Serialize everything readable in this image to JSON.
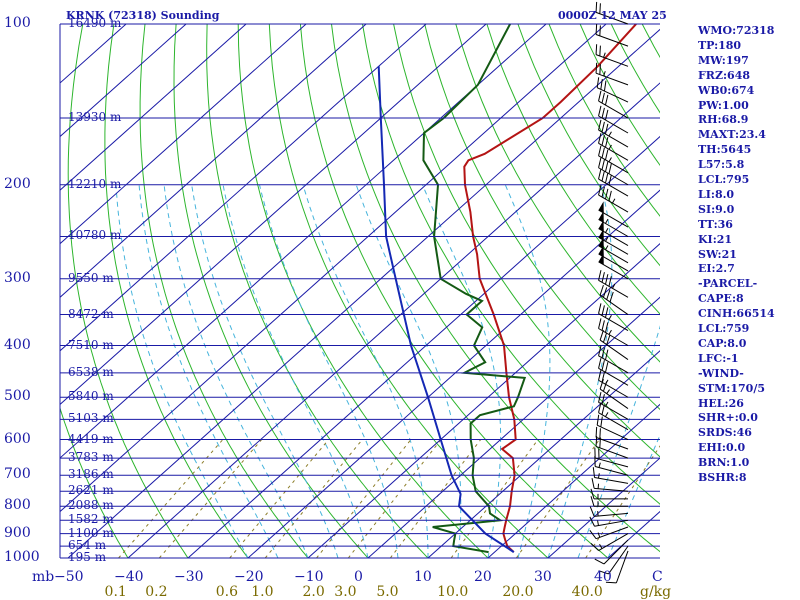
{
  "header": {
    "station": "KRNK (72318) Sounding",
    "time": "0000Z 12 MAY 25"
  },
  "indices": [
    "WMO:72318",
    "TP:180",
    "MW:197",
    "FRZ:648",
    "WB0:674",
    "PW:1.00",
    "RH:68.9",
    "MAXT:23.4",
    "TH:5645",
    "L57:5.8",
    "LCL:795",
    "LI:8.0",
    "SI:9.0",
    "TT:36",
    "KI:21",
    "SW:21",
    "EI:2.7",
    "-PARCEL-",
    "CAPE:8",
    "CINH:66514",
    "LCL:759",
    "CAP:8.0",
    "LFC:-1",
    "-WIND-",
    "STM:170/5",
    "HEL:26",
    "SHR+:0.0",
    "SRDS:46",
    "EHI:0.0",
    "BRN:1.0",
    "BSHR:8"
  ],
  "axis": {
    "pressure_unit": "mb",
    "mixing_unit": "g/kg",
    "c_label": "C"
  },
  "colors": {
    "isobar": "#1a1aa6",
    "isotherm": "#1a1aa6",
    "dry_adiabat": "#2db52d",
    "moist_adiabat": "#46b4dc",
    "mixing_ratio": "#8c7d28",
    "temperature": "#b41414",
    "dewpoint": "#145a14",
    "parcel": "#1428b4",
    "wind": "#000000"
  },
  "chart_data": {
    "type": "line",
    "title": "KRNK (72318) Sounding",
    "subtitle": "0000Z 12 MAY 25",
    "pressure_levels": [
      100,
      200,
      300,
      400,
      500,
      600,
      700,
      800,
      900,
      1000
    ],
    "pressure_range": [
      1000,
      100
    ],
    "temp_ticks": [
      -50,
      -40,
      -30,
      -20,
      -10,
      0,
      10,
      20,
      30,
      40
    ],
    "mixing_ratio_ticks": [
      "0.1",
      "0.2",
      "0.6",
      "1.0",
      "2.0",
      "3.0",
      "5.0",
      "10.0",
      "20.0",
      "40.0"
    ],
    "mixing_ratio_values": [
      0.1,
      0.2,
      0.6,
      1.0,
      2.0,
      3.0,
      5.0,
      10.0,
      20.0,
      40.0
    ],
    "heights": [
      {
        "p": 100,
        "text": "16490 m"
      },
      {
        "p": 150,
        "text": "13930 m"
      },
      {
        "p": 200,
        "text": "12210 m"
      },
      {
        "p": 250,
        "text": "10780 m"
      },
      {
        "p": 300,
        "text": "9550 m"
      },
      {
        "p": 350,
        "text": "8472 m"
      },
      {
        "p": 400,
        "text": "7510 m"
      },
      {
        "p": 450,
        "text": "6538 m"
      },
      {
        "p": 500,
        "text": "5840 m"
      },
      {
        "p": 550,
        "text": "5103 m"
      },
      {
        "p": 600,
        "text": "4419 m"
      },
      {
        "p": 650,
        "text": "3783 m"
      },
      {
        "p": 700,
        "text": "3186 m"
      },
      {
        "p": 750,
        "text": "2621 m"
      },
      {
        "p": 800,
        "text": "2088 m"
      },
      {
        "p": 850,
        "text": "1582 m"
      },
      {
        "p": 900,
        "text": "1100 m"
      },
      {
        "p": 950,
        "text": "654 m"
      },
      {
        "p": 1000,
        "text": "195 m"
      }
    ],
    "series": [
      {
        "name": "temperature",
        "points": [
          [
            975,
            23.2
          ],
          [
            950,
            21.0
          ],
          [
            925,
            19.5
          ],
          [
            900,
            18.0
          ],
          [
            875,
            17.0
          ],
          [
            850,
            16.0
          ],
          [
            800,
            14.0
          ],
          [
            750,
            11.5
          ],
          [
            700,
            9.0
          ],
          [
            650,
            5.5
          ],
          [
            625,
            2.0
          ],
          [
            600,
            2.5
          ],
          [
            550,
            -1.5
          ],
          [
            500,
            -6.5
          ],
          [
            450,
            -11.5
          ],
          [
            400,
            -17.0
          ],
          [
            350,
            -24.5
          ],
          [
            300,
            -33.5
          ],
          [
            270,
            -38.5
          ],
          [
            250,
            -42.5
          ],
          [
            225,
            -47.5
          ],
          [
            200,
            -53.5
          ],
          [
            185,
            -57.0
          ],
          [
            180,
            -57.5
          ],
          [
            175,
            -56.0
          ],
          [
            150,
            -53.0
          ],
          [
            140,
            -53.0
          ],
          [
            120,
            -53.5
          ],
          [
            100,
            -55.0
          ]
        ]
      },
      {
        "name": "dewpoint",
        "points": [
          [
            975,
            19.0
          ],
          [
            950,
            12.0
          ],
          [
            925,
            11.0
          ],
          [
            900,
            10.0
          ],
          [
            875,
            5.0
          ],
          [
            860,
            11.0
          ],
          [
            850,
            15.0
          ],
          [
            825,
            12.0
          ],
          [
            800,
            10.5
          ],
          [
            750,
            5.5
          ],
          [
            700,
            2.0
          ],
          [
            650,
            -1.0
          ],
          [
            600,
            -5.0
          ],
          [
            560,
            -8.0
          ],
          [
            540,
            -8.0
          ],
          [
            520,
            -4.0
          ],
          [
            500,
            -5.0
          ],
          [
            460,
            -7.5
          ],
          [
            450,
            -18.5
          ],
          [
            430,
            -17.0
          ],
          [
            400,
            -22.0
          ],
          [
            370,
            -24.0
          ],
          [
            350,
            -29.0
          ],
          [
            330,
            -29.0
          ],
          [
            320,
            -33.0
          ],
          [
            300,
            -40.0
          ],
          [
            250,
            -49.0
          ],
          [
            200,
            -58.0
          ],
          [
            180,
            -65.0
          ],
          [
            160,
            -70.0
          ],
          [
            150,
            -69.5
          ],
          [
            130,
            -70.0
          ],
          [
            100,
            -76.0
          ]
        ]
      },
      {
        "name": "parcel",
        "points": [
          [
            975,
            23.2
          ],
          [
            900,
            15.0
          ],
          [
            800,
            5.5
          ],
          [
            759,
            3.5
          ],
          [
            700,
            -1.5
          ],
          [
            600,
            -10.0
          ],
          [
            500,
            -20.0
          ],
          [
            400,
            -32.5
          ],
          [
            300,
            -47.5
          ],
          [
            250,
            -57.0
          ],
          [
            200,
            -67.0
          ],
          [
            150,
            -80.0
          ],
          [
            120,
            -90.0
          ]
        ]
      }
    ],
    "winds": [
      {
        "p": 970,
        "dir": 200,
        "spd": 10
      },
      {
        "p": 950,
        "dir": 215,
        "spd": 10
      },
      {
        "p": 925,
        "dir": 225,
        "spd": 10
      },
      {
        "p": 900,
        "dir": 240,
        "spd": 15
      },
      {
        "p": 875,
        "dir": 250,
        "spd": 15
      },
      {
        "p": 850,
        "dir": 260,
        "spd": 15
      },
      {
        "p": 825,
        "dir": 265,
        "spd": 15
      },
      {
        "p": 800,
        "dir": 270,
        "spd": 15
      },
      {
        "p": 775,
        "dir": 270,
        "spd": 15
      },
      {
        "p": 750,
        "dir": 275,
        "spd": 15
      },
      {
        "p": 725,
        "dir": 280,
        "spd": 15
      },
      {
        "p": 700,
        "dir": 285,
        "spd": 15
      },
      {
        "p": 675,
        "dir": 285,
        "spd": 20
      },
      {
        "p": 650,
        "dir": 290,
        "spd": 20
      },
      {
        "p": 625,
        "dir": 290,
        "spd": 20
      },
      {
        "p": 600,
        "dir": 295,
        "spd": 20
      },
      {
        "p": 575,
        "dir": 300,
        "spd": 25
      },
      {
        "p": 550,
        "dir": 300,
        "spd": 25
      },
      {
        "p": 525,
        "dir": 305,
        "spd": 25
      },
      {
        "p": 500,
        "dir": 300,
        "spd": 25
      },
      {
        "p": 475,
        "dir": 300,
        "spd": 30
      },
      {
        "p": 450,
        "dir": 300,
        "spd": 30
      },
      {
        "p": 425,
        "dir": 305,
        "spd": 30
      },
      {
        "p": 400,
        "dir": 300,
        "spd": 35
      },
      {
        "p": 375,
        "dir": 300,
        "spd": 35
      },
      {
        "p": 350,
        "dir": 305,
        "spd": 40
      },
      {
        "p": 325,
        "dir": 300,
        "spd": 45
      },
      {
        "p": 300,
        "dir": 300,
        "spd": 50
      },
      {
        "p": 290,
        "dir": 300,
        "spd": 50
      },
      {
        "p": 280,
        "dir": 300,
        "spd": 55
      },
      {
        "p": 270,
        "dir": 300,
        "spd": 55
      },
      {
        "p": 260,
        "dir": 300,
        "spd": 55
      },
      {
        "p": 250,
        "dir": 300,
        "spd": 55
      },
      {
        "p": 240,
        "dir": 300,
        "spd": 50
      },
      {
        "p": 225,
        "dir": 300,
        "spd": 45
      },
      {
        "p": 210,
        "dir": 300,
        "spd": 40
      },
      {
        "p": 200,
        "dir": 300,
        "spd": 40
      },
      {
        "p": 190,
        "dir": 300,
        "spd": 35
      },
      {
        "p": 180,
        "dir": 300,
        "spd": 35
      },
      {
        "p": 170,
        "dir": 300,
        "spd": 35
      },
      {
        "p": 160,
        "dir": 300,
        "spd": 30
      },
      {
        "p": 150,
        "dir": 300,
        "spd": 30
      },
      {
        "p": 140,
        "dir": 295,
        "spd": 30
      },
      {
        "p": 130,
        "dir": 290,
        "spd": 25
      },
      {
        "p": 120,
        "dir": 290,
        "spd": 25
      },
      {
        "p": 110,
        "dir": 290,
        "spd": 20
      },
      {
        "p": 100,
        "dir": 290,
        "spd": 20
      }
    ]
  }
}
